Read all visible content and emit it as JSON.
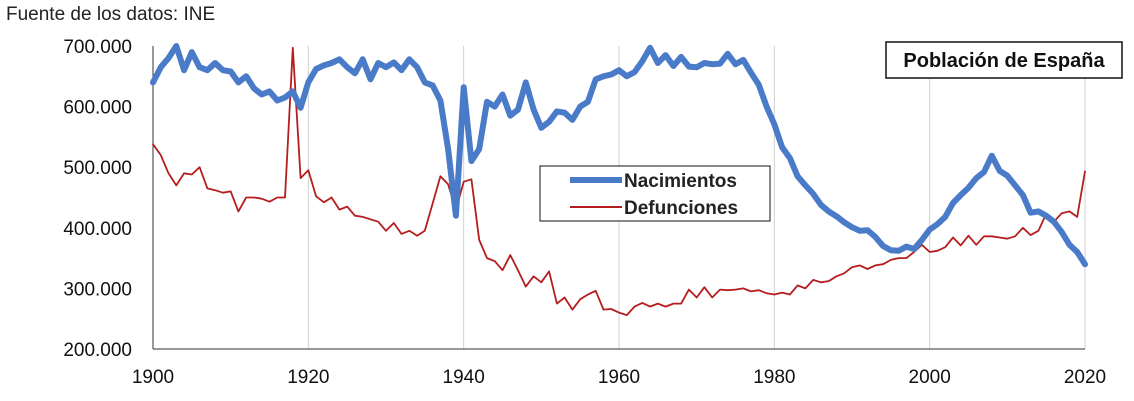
{
  "source_note": "Fuente de los datos: INE",
  "chart_data": {
    "type": "line",
    "title": "Población de España",
    "xlabel": "",
    "ylabel": "",
    "xlim": [
      1900,
      2020
    ],
    "ylim": [
      200000,
      700000
    ],
    "x_ticks": [
      1900,
      1920,
      1940,
      1960,
      1980,
      2000,
      2020
    ],
    "y_ticks": [
      200000,
      300000,
      400000,
      500000,
      600000,
      700000
    ],
    "y_tick_labels": [
      "200.000",
      "300.000",
      "400.000",
      "500.000",
      "600.000",
      "700.000"
    ],
    "grid": "vertical",
    "legend_position": "center",
    "series": [
      {
        "name": "Nacimientos",
        "color": "#4a7bc8",
        "x": [
          1900,
          1901,
          1902,
          1903,
          1904,
          1905,
          1906,
          1907,
          1908,
          1909,
          1910,
          1911,
          1912,
          1913,
          1914,
          1915,
          1916,
          1917,
          1918,
          1919,
          1920,
          1921,
          1922,
          1923,
          1924,
          1925,
          1926,
          1927,
          1928,
          1929,
          1930,
          1931,
          1932,
          1933,
          1934,
          1935,
          1936,
          1937,
          1938,
          1939,
          1940,
          1941,
          1942,
          1943,
          1944,
          1945,
          1946,
          1947,
          1948,
          1949,
          1950,
          1951,
          1952,
          1953,
          1954,
          1955,
          1956,
          1957,
          1958,
          1959,
          1960,
          1961,
          1962,
          1963,
          1964,
          1965,
          1966,
          1967,
          1968,
          1969,
          1970,
          1971,
          1972,
          1973,
          1974,
          1975,
          1976,
          1977,
          1978,
          1979,
          1980,
          1981,
          1982,
          1983,
          1984,
          1985,
          1986,
          1987,
          1988,
          1989,
          1990,
          1991,
          1992,
          1993,
          1994,
          1995,
          1996,
          1997,
          1998,
          1999,
          2000,
          2001,
          2002,
          2003,
          2004,
          2005,
          2006,
          2007,
          2008,
          2009,
          2010,
          2011,
          2012,
          2013,
          2014,
          2015,
          2016,
          2017,
          2018,
          2019,
          2020
        ],
        "values": [
          640000,
          665000,
          680000,
          700000,
          660000,
          690000,
          665000,
          660000,
          672000,
          660000,
          658000,
          640000,
          650000,
          630000,
          620000,
          625000,
          610000,
          615000,
          625000,
          598000,
          640000,
          662000,
          668000,
          672000,
          678000,
          665000,
          655000,
          678000,
          645000,
          672000,
          665000,
          673000,
          660000,
          678000,
          665000,
          640000,
          635000,
          610000,
          530000,
          420000,
          632000,
          510000,
          530000,
          608000,
          600000,
          620000,
          585000,
          595000,
          640000,
          595000,
          565000,
          575000,
          592000,
          590000,
          578000,
          600000,
          608000,
          645000,
          650000,
          653000,
          660000,
          650000,
          657000,
          675000,
          697000,
          672000,
          685000,
          667000,
          682000,
          666000,
          665000,
          672000,
          670000,
          671000,
          687000,
          670000,
          677000,
          656000,
          636000,
          600000,
          571000,
          533000,
          515000,
          485000,
          470000,
          456000,
          438000,
          427000,
          419000,
          409000,
          401000,
          395000,
          396000,
          385000,
          370000,
          363000,
          362000,
          369000,
          365000,
          380000,
          397000,
          406000,
          418000,
          441000,
          454000,
          466000,
          482000,
          492000,
          519000,
          494000,
          486000,
          470000,
          454000,
          425000,
          427000,
          420000,
          410000,
          393000,
          372000,
          360000,
          340000
        ]
      },
      {
        "name": "Defunciones",
        "color": "#b51e1e",
        "x": [
          1900,
          1901,
          1902,
          1903,
          1904,
          1905,
          1906,
          1907,
          1908,
          1909,
          1910,
          1911,
          1912,
          1913,
          1914,
          1915,
          1916,
          1917,
          1918,
          1919,
          1920,
          1921,
          1922,
          1923,
          1924,
          1925,
          1926,
          1927,
          1928,
          1929,
          1930,
          1931,
          1932,
          1933,
          1934,
          1935,
          1936,
          1937,
          1938,
          1939,
          1940,
          1941,
          1942,
          1943,
          1944,
          1945,
          1946,
          1947,
          1948,
          1949,
          1950,
          1951,
          1952,
          1953,
          1954,
          1955,
          1956,
          1957,
          1958,
          1959,
          1960,
          1961,
          1962,
          1963,
          1964,
          1965,
          1966,
          1967,
          1968,
          1969,
          1970,
          1971,
          1972,
          1973,
          1974,
          1975,
          1976,
          1977,
          1978,
          1979,
          1980,
          1981,
          1982,
          1983,
          1984,
          1985,
          1986,
          1987,
          1988,
          1989,
          1990,
          1991,
          1992,
          1993,
          1994,
          1995,
          1996,
          1997,
          1998,
          1999,
          2000,
          2001,
          2002,
          2003,
          2004,
          2005,
          2006,
          2007,
          2008,
          2009,
          2010,
          2011,
          2012,
          2013,
          2014,
          2015,
          2016,
          2017,
          2018,
          2019,
          2020
        ],
        "values": [
          538000,
          520000,
          490000,
          470000,
          490000,
          488000,
          500000,
          465000,
          462000,
          458000,
          460000,
          427000,
          450000,
          450000,
          448000,
          443000,
          450000,
          450000,
          697000,
          482000,
          495000,
          452000,
          442000,
          450000,
          430000,
          435000,
          420000,
          418000,
          414000,
          410000,
          395000,
          408000,
          390000,
          395000,
          387000,
          395000,
          440000,
          485000,
          472000,
          430000,
          476000,
          480000,
          380000,
          350000,
          345000,
          330000,
          355000,
          330000,
          303000,
          320000,
          310000,
          328000,
          275000,
          285000,
          265000,
          282000,
          290000,
          296000,
          265000,
          266000,
          260000,
          256000,
          270000,
          276000,
          270000,
          275000,
          270000,
          275000,
          275000,
          298000,
          285000,
          302000,
          285000,
          298000,
          297000,
          298000,
          300000,
          295000,
          297000,
          292000,
          290000,
          293000,
          290000,
          305000,
          300000,
          314000,
          310000,
          312000,
          320000,
          325000,
          335000,
          338000,
          332000,
          338000,
          340000,
          347000,
          350000,
          350000,
          360000,
          372000,
          360000,
          362000,
          368000,
          384000,
          371000,
          387000,
          372000,
          386000,
          386000,
          384000,
          382000,
          386000,
          400000,
          388000,
          395000,
          423000,
          410000,
          424000,
          427000,
          418000,
          493000
        ]
      }
    ]
  }
}
